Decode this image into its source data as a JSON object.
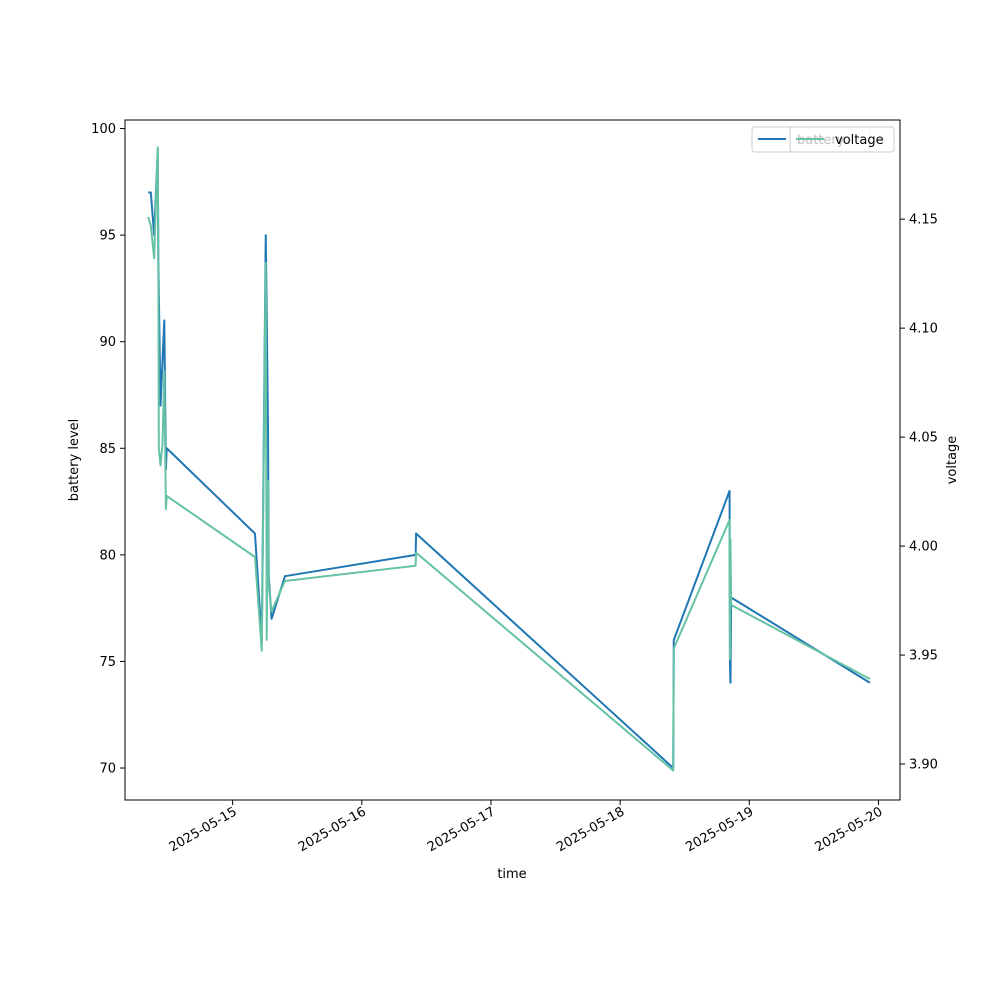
{
  "chart_data": {
    "type": "line",
    "xlabel": "time",
    "ylabel_left": "battery level",
    "ylabel_right": "voltage",
    "xlim": [
      "2025-05-14T04:00",
      "2025-05-20T04:00"
    ],
    "ylim_left": [
      68.5,
      100.4
    ],
    "ylim_right": [
      3.8835,
      4.1955
    ],
    "x_ticks": [
      "2025-05-15",
      "2025-05-16",
      "2025-05-17",
      "2025-05-18",
      "2025-05-19",
      "2025-05-20"
    ],
    "y_ticks_left": [
      70,
      75,
      80,
      85,
      90,
      95,
      100
    ],
    "y_ticks_right": [
      "3.90",
      "3.95",
      "4.00",
      "4.05",
      "4.10",
      "4.15"
    ],
    "grid": false,
    "legend": {
      "placement": "top-right",
      "entries_overlapping": [
        {
          "label": "battery",
          "color": "#1f77b4"
        },
        {
          "label": "voltage",
          "color": "#66c2a5"
        }
      ]
    },
    "series": [
      {
        "name": "battery",
        "axis": "left",
        "color": "#1f77b4",
        "points": [
          [
            "2025-05-14T08:18",
            97
          ],
          [
            "2025-05-14T08:48",
            97
          ],
          [
            "2025-05-14T09:25",
            95
          ],
          [
            "2025-05-14T10:05",
            99
          ],
          [
            "2025-05-14T10:11",
            94
          ],
          [
            "2025-05-14T10:36",
            87
          ],
          [
            "2025-05-14T11:18",
            91
          ],
          [
            "2025-05-14T11:36",
            84
          ],
          [
            "2025-05-14T11:45",
            85
          ],
          [
            "2025-05-15T04:09",
            81
          ],
          [
            "2025-05-15T05:25",
            76
          ],
          [
            "2025-05-15T06:09",
            95
          ],
          [
            "2025-05-15T06:15",
            93
          ],
          [
            "2025-05-15T06:34",
            86
          ],
          [
            "2025-05-15T06:43",
            79
          ],
          [
            "2025-05-15T07:14",
            77
          ],
          [
            "2025-05-15T09:43",
            79
          ],
          [
            "2025-05-16T10:00",
            80
          ],
          [
            "2025-05-16T10:05",
            81
          ],
          [
            "2025-05-18T09:52",
            70
          ],
          [
            "2025-05-18T09:58",
            76
          ],
          [
            "2025-05-18T20:20",
            83
          ],
          [
            "2025-05-18T20:24",
            75
          ],
          [
            "2025-05-18T20:30",
            74
          ],
          [
            "2025-05-18T20:37",
            78
          ],
          [
            "2025-05-19T22:24",
            74
          ]
        ]
      },
      {
        "name": "voltage",
        "axis": "right",
        "color": "#66c2a5",
        "points": [
          [
            "2025-05-14T08:18",
            4.151
          ],
          [
            "2025-05-14T08:48",
            4.147
          ],
          [
            "2025-05-14T09:25",
            4.132
          ],
          [
            "2025-05-14T10:05",
            4.183
          ],
          [
            "2025-05-14T10:11",
            4.14
          ],
          [
            "2025-05-14T10:17",
            4.045
          ],
          [
            "2025-05-14T10:36",
            4.037
          ],
          [
            "2025-05-14T10:58",
            4.047
          ],
          [
            "2025-05-14T11:18",
            4.08
          ],
          [
            "2025-05-14T11:36",
            4.017
          ],
          [
            "2025-05-14T11:45",
            4.023
          ],
          [
            "2025-05-15T04:09",
            3.995
          ],
          [
            "2025-05-15T05:25",
            3.952
          ],
          [
            "2025-05-15T06:09",
            4.13
          ],
          [
            "2025-05-15T06:20",
            3.957
          ],
          [
            "2025-05-15T06:34",
            4.03
          ],
          [
            "2025-05-15T06:43",
            3.982
          ],
          [
            "2025-05-15T07:14",
            3.97
          ],
          [
            "2025-05-15T09:43",
            3.984
          ],
          [
            "2025-05-16T10:00",
            3.991
          ],
          [
            "2025-05-16T10:05",
            3.997
          ],
          [
            "2025-05-18T09:52",
            3.897
          ],
          [
            "2025-05-18T09:58",
            3.953
          ],
          [
            "2025-05-18T20:20",
            4.012
          ],
          [
            "2025-05-18T20:24",
            3.948
          ],
          [
            "2025-05-18T20:30",
            4.003
          ],
          [
            "2025-05-18T20:37",
            3.973
          ],
          [
            "2025-05-19T22:24",
            3.939
          ]
        ]
      }
    ]
  }
}
